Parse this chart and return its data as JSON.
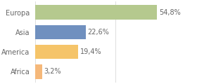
{
  "categories": [
    "Europa",
    "Asia",
    "America",
    "Africa"
  ],
  "values": [
    54.8,
    22.6,
    19.4,
    3.2
  ],
  "labels": [
    "54,8%",
    "22,6%",
    "19,4%",
    "3,2%"
  ],
  "bar_colors": [
    "#b5c98e",
    "#7090bf",
    "#f5c469",
    "#f5b87a"
  ],
  "background_color": "#ffffff",
  "text_color": "#666666",
  "xlim": [
    0,
    72
  ],
  "label_fontsize": 7,
  "category_fontsize": 7,
  "bar_height": 0.72,
  "grid_lines": [
    36,
    72
  ]
}
